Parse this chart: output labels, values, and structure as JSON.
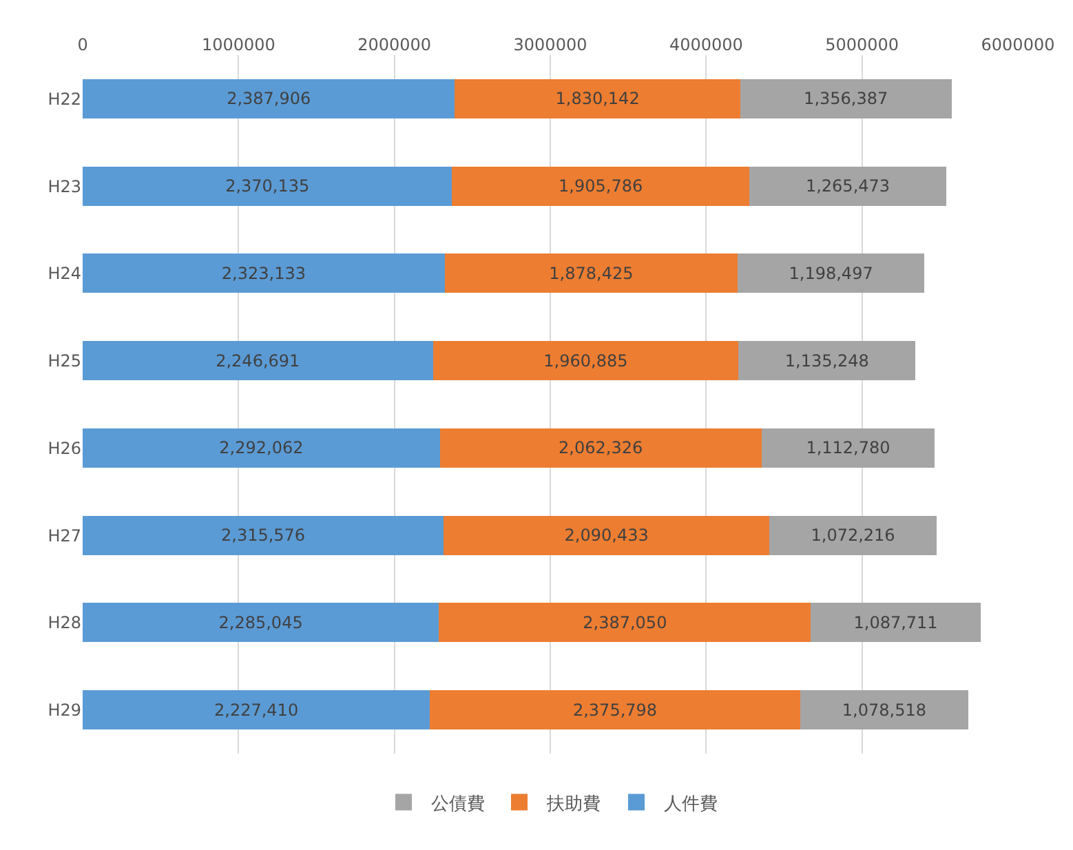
{
  "chart_data": {
    "type": "bar",
    "orientation": "horizontal",
    "stacked": true,
    "categories": [
      "H22",
      "H23",
      "H24",
      "H25",
      "H26",
      "H27",
      "H28",
      "H29"
    ],
    "series": [
      {
        "name": "人件費",
        "color": "#5b9bd5",
        "values": [
          2387906,
          2370135,
          2323133,
          2246691,
          2292062,
          2315576,
          2285045,
          2227410
        ],
        "value_labels": [
          "2,387,906",
          "2,370,135",
          "2,323,133",
          "2,246,691",
          "2,292,062",
          "2,315,576",
          "2,285,045",
          "2,227,410"
        ]
      },
      {
        "name": "扶助費",
        "color": "#ed7d31",
        "values": [
          1830142,
          1905786,
          1878425,
          1960885,
          2062326,
          2090433,
          2387050,
          2375798
        ],
        "value_labels": [
          "1,830,142",
          "1,905,786",
          "1,878,425",
          "1,960,885",
          "2,062,326",
          "2,090,433",
          "2,387,050",
          "2,375,798"
        ]
      },
      {
        "name": "公債費",
        "color": "#a5a5a5",
        "values": [
          1356387,
          1265473,
          1198497,
          1135248,
          1112780,
          1072216,
          1087711,
          1078518
        ],
        "value_labels": [
          "1,356,387",
          "1,265,473",
          "1,198,497",
          "1,135,248",
          "1,112,780",
          "1,072,216",
          "1,087,711",
          "1,078,518"
        ]
      }
    ],
    "xlim": [
      0,
      6000000
    ],
    "xticks": [
      0,
      1000000,
      2000000,
      3000000,
      4000000,
      5000000,
      6000000
    ],
    "grid": "x",
    "legend": "bottom"
  }
}
